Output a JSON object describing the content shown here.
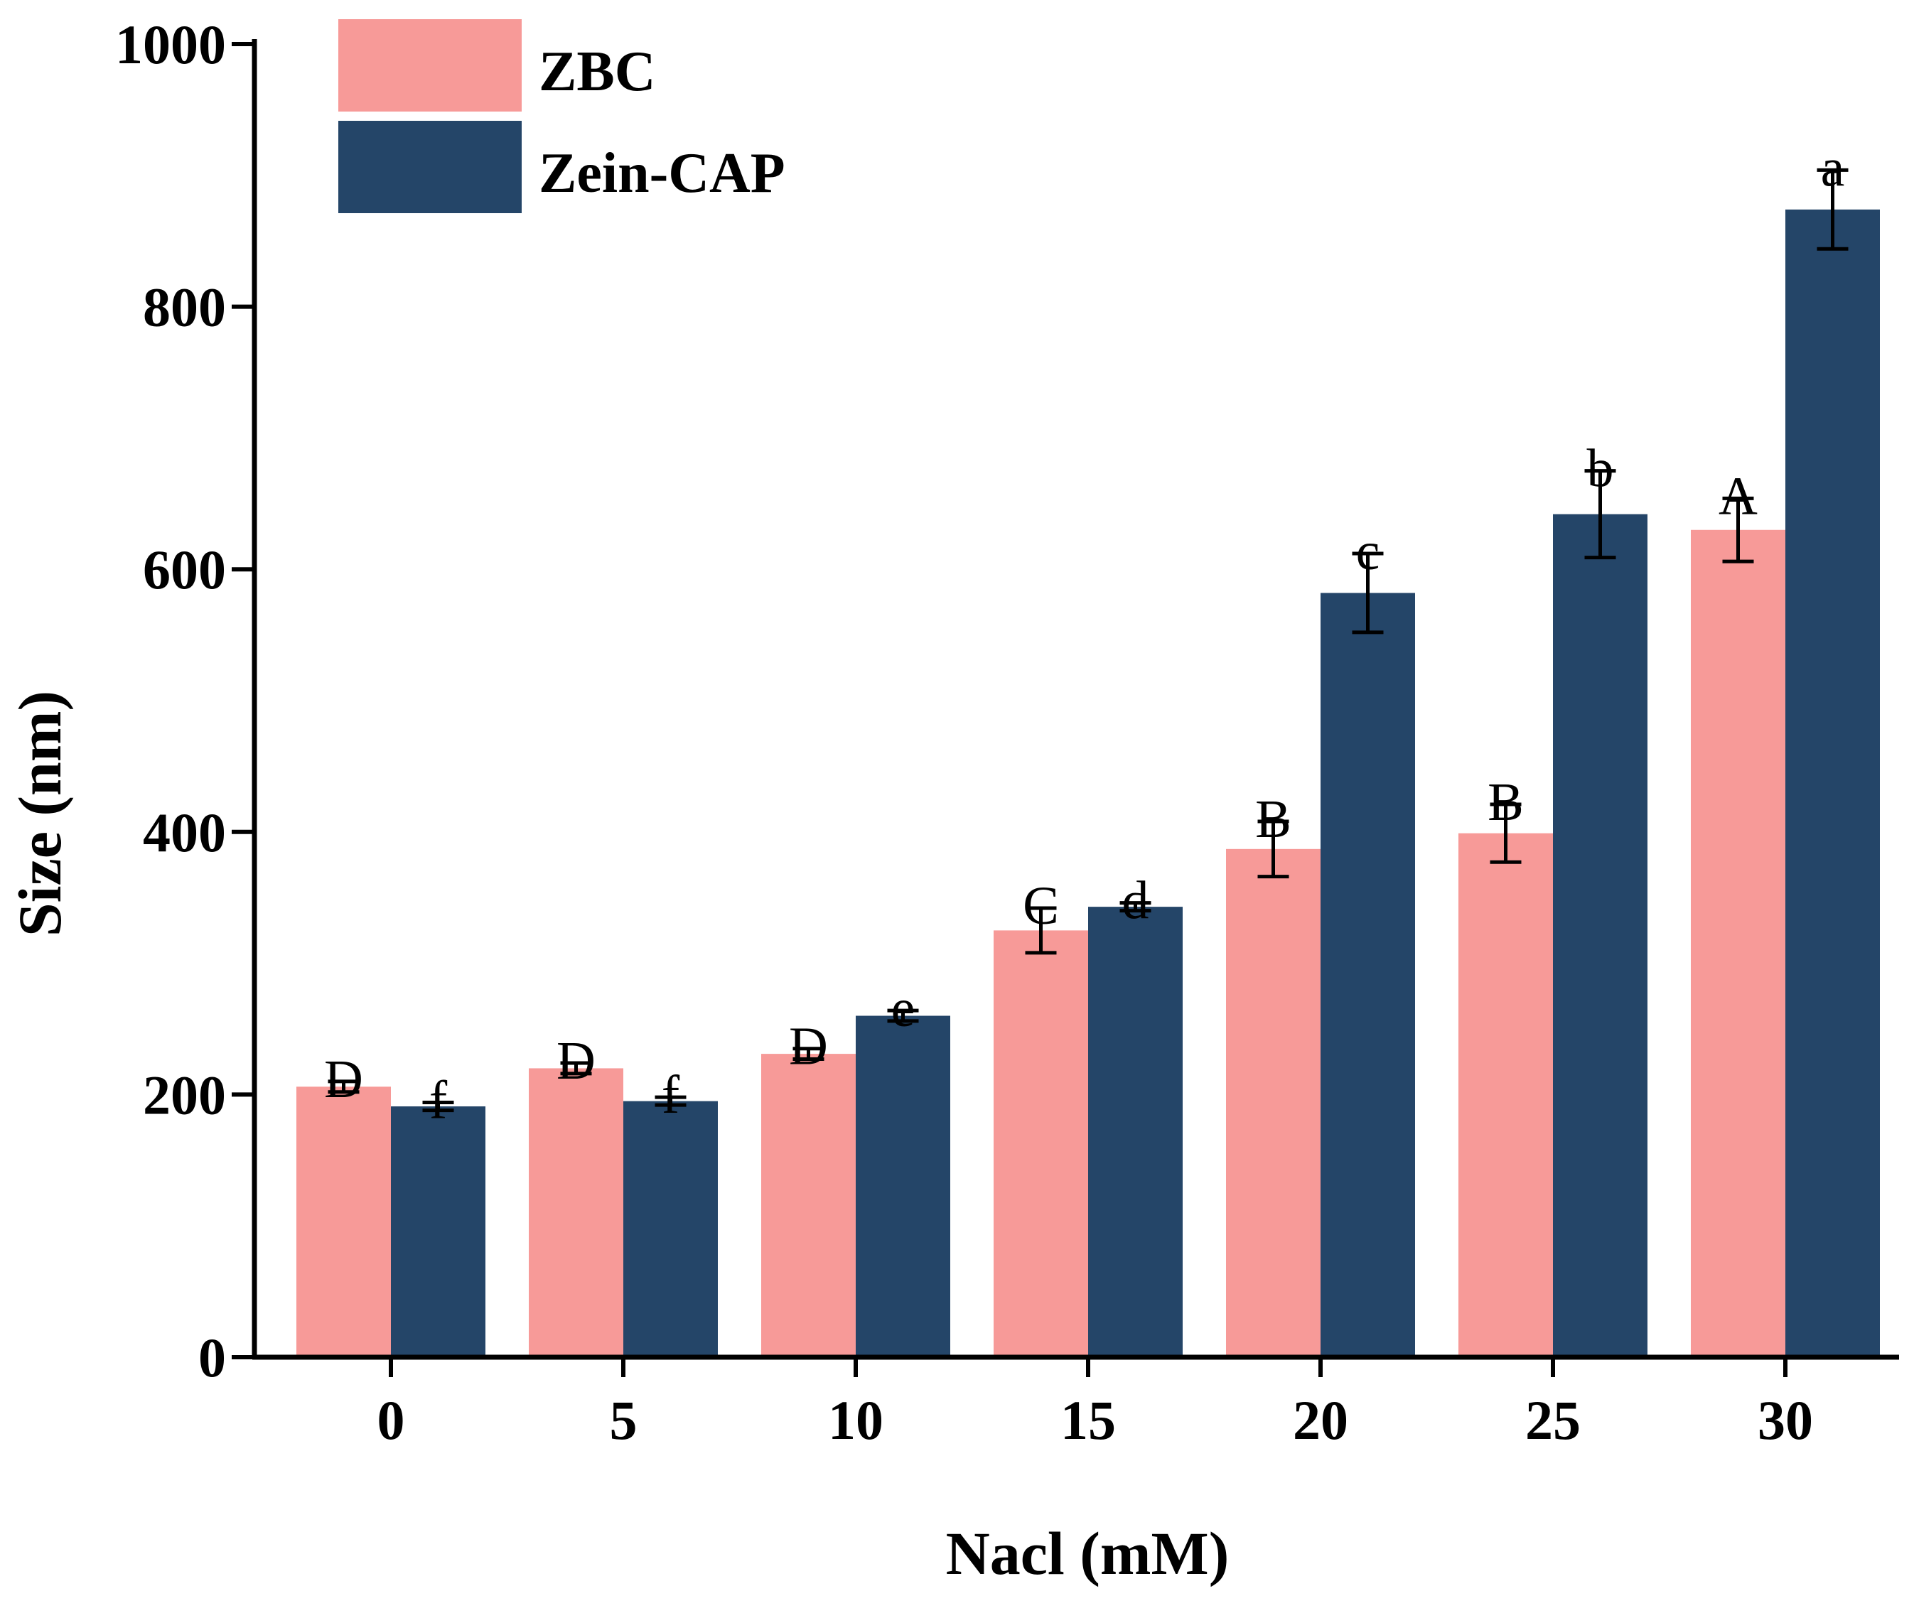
{
  "chart_data": {
    "type": "bar",
    "title": "",
    "xlabel": "Nacl (mM)",
    "ylabel": "Size (nm)",
    "categories": [
      "0",
      "5",
      "10",
      "15",
      "20",
      "25",
      "30"
    ],
    "yticks": [
      "0",
      "200",
      "400",
      "600",
      "800",
      "1000"
    ],
    "ylim": [
      0,
      1000
    ],
    "legend_position": "top-left",
    "series": [
      {
        "name": "ZBC",
        "color": "#f79a98",
        "values": [
          206,
          220,
          231,
          325,
          387,
          399,
          630
        ],
        "errors": [
          4,
          4,
          4,
          17,
          21,
          22,
          24
        ],
        "letters": [
          "D",
          "D",
          "D",
          "C",
          "B",
          "B",
          "A"
        ]
      },
      {
        "name": "Zein-CAP",
        "color": "#244568",
        "values": [
          191,
          195,
          260,
          343,
          582,
          642,
          874
        ],
        "errors": [
          3,
          3,
          4,
          3,
          30,
          33,
          30
        ],
        "letters": [
          "f",
          "f",
          "e",
          "d",
          "c",
          "b",
          "a"
        ]
      }
    ]
  }
}
